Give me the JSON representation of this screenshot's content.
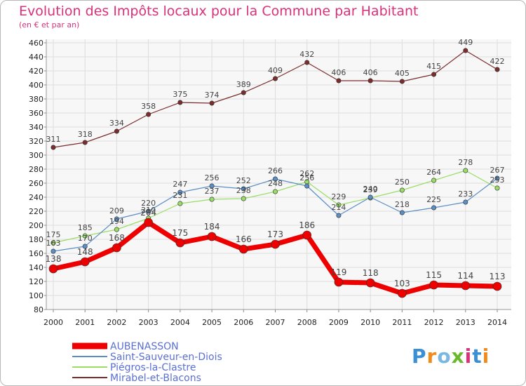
{
  "title": "Evolution des Impôts locaux pour la Commune par Habitant",
  "subtitle": "(en € et par an)",
  "logo": {
    "text": "Proxiti",
    "colors": [
      "#3b8fd4",
      "#f08c1c",
      "#7ab8e0",
      "#6ab82c",
      "#d9317a",
      "#3b8fd4",
      "#f08c1c"
    ]
  },
  "chart_data": {
    "type": "line",
    "title": "Evolution des Impôts locaux pour la Commune par Habitant",
    "subtitle": "(en € et par an)",
    "xlabel": "",
    "ylabel": "",
    "x": [
      2000,
      2001,
      2002,
      2003,
      2004,
      2005,
      2006,
      2007,
      2008,
      2009,
      2010,
      2011,
      2012,
      2013,
      2014
    ],
    "ylim": [
      80,
      460
    ],
    "yticks": [
      80,
      100,
      120,
      140,
      160,
      180,
      200,
      220,
      240,
      260,
      280,
      300,
      320,
      340,
      360,
      380,
      400,
      420,
      440,
      460
    ],
    "grid": true,
    "legend_position": "bottom-left",
    "series": [
      {
        "name": "Mirabel-et-Blacons",
        "color": "#7b2c2c",
        "width": 1.2,
        "values": [
          311,
          318,
          334,
          358,
          375,
          374,
          389,
          409,
          432,
          406,
          406,
          405,
          415,
          449,
          422
        ]
      },
      {
        "name": "Piégros-la-Clastre",
        "color": "#99dd66",
        "width": 1.2,
        "values": [
          175,
          185,
          194,
          210,
          231,
          237,
          238,
          248,
          262,
          229,
          239,
          250,
          264,
          278,
          253
        ]
      },
      {
        "name": "Saint-Sauveur-en-Diois",
        "color": "#5b8ec4",
        "width": 1.2,
        "values": [
          163,
          170,
          209,
          220,
          247,
          256,
          252,
          266,
          256,
          214,
          240,
          218,
          225,
          233,
          267
        ]
      },
      {
        "name": "AUBENASSON",
        "color": "#ee0000",
        "width": 7,
        "values": [
          138,
          148,
          168,
          204,
          175,
          184,
          166,
          173,
          186,
          119,
          118,
          103,
          115,
          114,
          113
        ]
      }
    ]
  }
}
